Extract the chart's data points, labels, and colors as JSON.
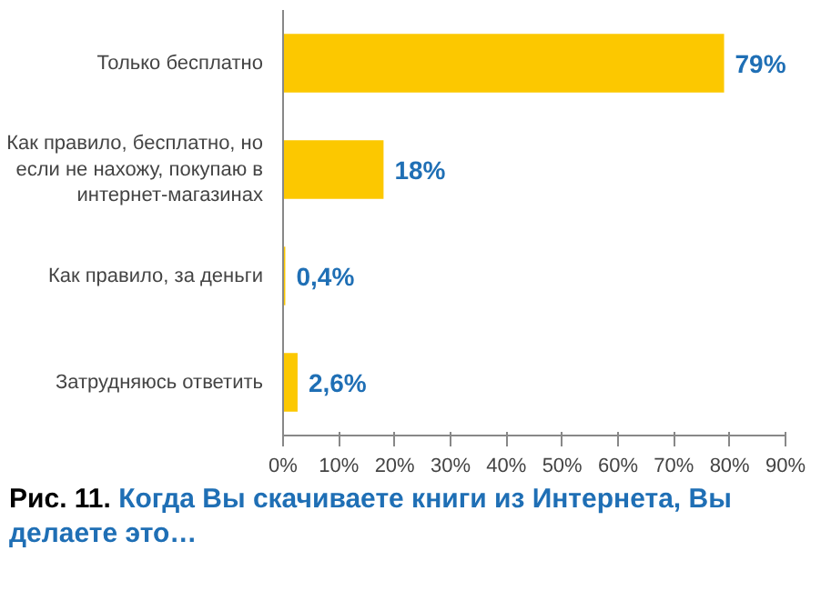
{
  "chart_data": {
    "type": "bar",
    "orientation": "horizontal",
    "title": "Рис. 11.",
    "subtitle": "Когда Вы скачиваете книги из Интернета, Вы делаете это…",
    "categories": [
      "Только бесплатно",
      "Как правило, бесплатно, но если не нахожу, покупаю в интернет-магазинах",
      "Как правило, за деньги",
      "Затрудняюсь ответить"
    ],
    "values": [
      79,
      18,
      0.4,
      2.6
    ],
    "value_labels": [
      "79%",
      "18%",
      "0,4%",
      "2,6%"
    ],
    "color": "#fcc800",
    "xlim": [
      0,
      90
    ],
    "xticks": [
      {
        "value": 0,
        "label": "0%"
      },
      {
        "value": 10,
        "label": "10%"
      },
      {
        "value": 20,
        "label": "20%"
      },
      {
        "value": 30,
        "label": "30%"
      },
      {
        "value": 40,
        "label": "40%"
      },
      {
        "value": 50,
        "label": "50%"
      },
      {
        "value": 60,
        "label": "60%"
      },
      {
        "value": 70,
        "label": "70%"
      },
      {
        "value": 80,
        "label": "80%"
      },
      {
        "value": 90,
        "label": "90%"
      }
    ],
    "grid": false
  }
}
